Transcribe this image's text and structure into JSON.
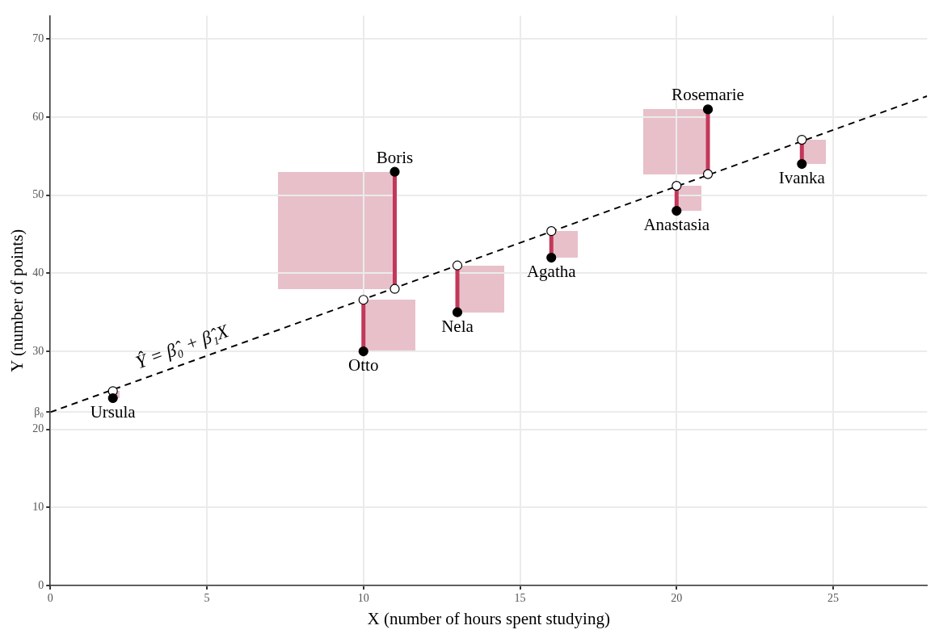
{
  "chart_data": {
    "type": "scatter",
    "xlabel": "X (number of hours spent studying)",
    "ylabel": "Y (number of points)",
    "x": [
      2,
      10,
      11,
      13,
      16,
      20,
      21,
      24
    ],
    "series": [
      {
        "color": "#000000",
        "values": [
          24,
          30,
          53,
          35,
          42,
          48,
          61,
          54
        ],
        "value_labels": [
          "Ursula",
          "Otto",
          "Boris",
          "Nela",
          "Agatha",
          "Anastasia",
          "Rosemarie",
          "Ivanka"
        ]
      },
      {
        "color": "#ffffff",
        "values": [
          24.9,
          36.6,
          38.0,
          41.0,
          45.4,
          51.2,
          52.7,
          57.1
        ]
      },
      {
        "type": "line",
        "color": "#000000",
        "line_style": "dashed",
        "marker": "none",
        "x": [
          0,
          28
        ],
        "values": [
          22.2,
          62.7
        ]
      }
    ],
    "annotations": [
      "Ŷ = β̂₀ + β̂₁X"
    ],
    "xlim": [
      0,
      28
    ],
    "xticks": [
      0,
      5,
      10,
      15,
      20,
      25
    ],
    "ylim": [
      0,
      73
    ],
    "yticks": [
      0,
      10,
      20,
      {
        "value": 22.2,
        "label": "β₀"
      },
      30,
      40,
      50,
      60,
      70
    ],
    "grid": true,
    "legend": false,
    "marker": "circle"
  }
}
